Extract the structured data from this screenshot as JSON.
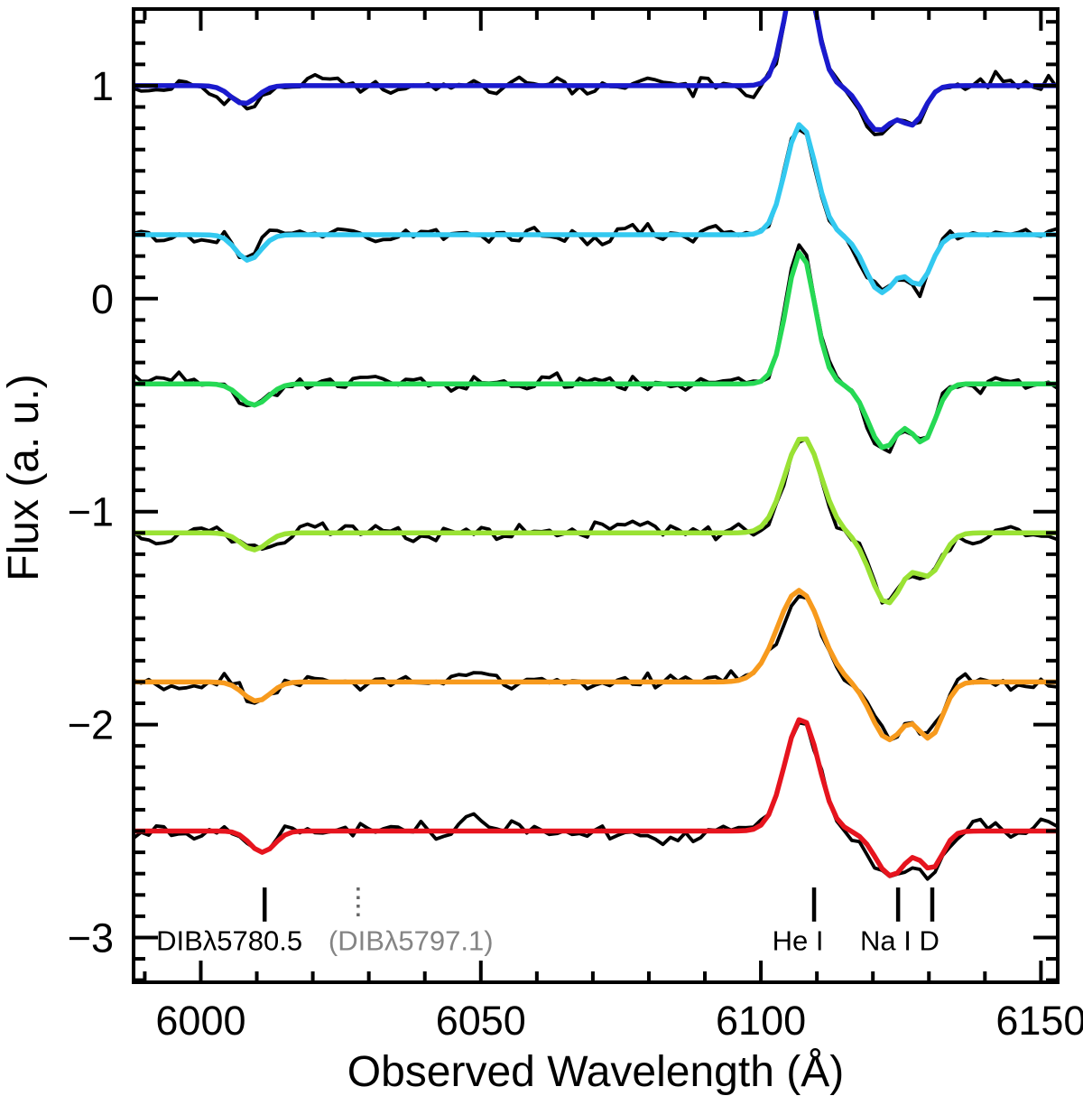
{
  "figure": {
    "xlabel": "Observed Wavelength (Å)",
    "ylabel": "Flux (a. u.)"
  },
  "chart_data": {
    "type": "line",
    "title": "",
    "xlabel": "Observed Wavelength (Å)",
    "ylabel": "Flux (a. u.)",
    "xlim": [
      5988,
      6153
    ],
    "ylim": [
      -3.21,
      1.36
    ],
    "x_major_ticks": [
      6000,
      6050,
      6100,
      6150
    ],
    "x_major_tick_labels": [
      "6000",
      "6050",
      "6100",
      "6150"
    ],
    "x_minor_step": 10,
    "y_major_ticks": [
      1,
      0,
      -1,
      -2,
      -3
    ],
    "y_major_tick_labels": [
      "1",
      "0",
      "−1",
      "−2",
      "−3"
    ],
    "y_minor_step": 0.1,
    "grid": false,
    "legend": "none",
    "data_line_color": "#000000",
    "sample_step": 1.35,
    "noise_sigma": 0.033,
    "series": [
      {
        "name": "spectrum-1",
        "model_color": "#1a1acd",
        "offset": 1.0,
        "seed": 41,
        "emission": {
          "center": 6107.1,
          "amp": 0.62,
          "sigma": 2.5
        },
        "absorptions": [
          {
            "center": 6007.7,
            "depth": 0.085,
            "sigma": 2.3
          },
          {
            "center": 6120.9,
            "depth": 0.21,
            "sigma": 2.7
          },
          {
            "center": 6127.2,
            "depth": 0.17,
            "sigma": 2.1
          }
        ]
      },
      {
        "name": "spectrum-2",
        "model_color": "#33c9f0",
        "offset": 0.3,
        "seed": 17,
        "emission": {
          "center": 6107.1,
          "amp": 0.52,
          "sigma": 2.7
        },
        "absorptions": [
          {
            "center": 6008.5,
            "depth": 0.12,
            "sigma": 2.2
          },
          {
            "center": 6121.5,
            "depth": 0.27,
            "sigma": 2.8
          },
          {
            "center": 6128.3,
            "depth": 0.22,
            "sigma": 2.2
          }
        ]
      },
      {
        "name": "spectrum-3",
        "model_color": "#26d954",
        "offset": -0.4,
        "seed": 23,
        "emission": {
          "center": 6107.1,
          "amp": 0.62,
          "sigma": 2.5
        },
        "absorptions": [
          {
            "center": 6009.5,
            "depth": 0.1,
            "sigma": 2.5
          },
          {
            "center": 6122.0,
            "depth": 0.3,
            "sigma": 2.8
          },
          {
            "center": 6129.0,
            "depth": 0.26,
            "sigma": 2.2
          }
        ]
      },
      {
        "name": "spectrum-4",
        "model_color": "#9ae234",
        "offset": -1.1,
        "seed": 57,
        "emission": {
          "center": 6107.5,
          "amp": 0.45,
          "sigma": 3.2
        },
        "absorptions": [
          {
            "center": 6009.5,
            "depth": 0.08,
            "sigma": 2.3
          },
          {
            "center": 6122.5,
            "depth": 0.33,
            "sigma": 2.9
          },
          {
            "center": 6130.0,
            "depth": 0.19,
            "sigma": 2.4
          }
        ]
      },
      {
        "name": "spectrum-5",
        "model_color": "#f79a1d",
        "offset": -1.8,
        "seed": 71,
        "emission": {
          "center": 6106.8,
          "amp": 0.43,
          "sigma": 3.8
        },
        "absorptions": [
          {
            "center": 6010.0,
            "depth": 0.09,
            "sigma": 2.4
          },
          {
            "center": 6122.8,
            "depth": 0.27,
            "sigma": 3.0
          },
          {
            "center": 6130.2,
            "depth": 0.25,
            "sigma": 2.3
          }
        ]
      },
      {
        "name": "spectrum-6",
        "model_color": "#e6141e",
        "offset": -2.5,
        "seed": 93,
        "emission": {
          "center": 6107.3,
          "amp": 0.53,
          "sigma": 3.0
        },
        "absorptions": [
          {
            "center": 6011.0,
            "depth": 0.1,
            "sigma": 2.2
          },
          {
            "center": 6123.3,
            "depth": 0.21,
            "sigma": 2.8
          },
          {
            "center": 6130.5,
            "depth": 0.17,
            "sigma": 2.0
          }
        ]
      }
    ],
    "annotations": {
      "marker_top": -2.765,
      "marker_bottom": -2.925,
      "label_baseline": -3.06,
      "markers": [
        {
          "wavelength": 6011.4,
          "style": "solid",
          "color": "#000000",
          "name": "dib-5780-marker"
        },
        {
          "wavelength": 6028.1,
          "style": "dotted",
          "color": "#666666",
          "name": "dib-5797-marker"
        },
        {
          "wavelength": 6109.5,
          "style": "solid",
          "color": "#000000",
          "name": "he-i-marker"
        },
        {
          "wavelength": 6124.5,
          "style": "solid",
          "color": "#000000",
          "name": "na-i-d1-marker"
        },
        {
          "wavelength": 6130.6,
          "style": "solid",
          "color": "#000000",
          "name": "na-i-d2-marker"
        }
      ],
      "labels": [
        {
          "text": "DIBλ5780.5",
          "wavelength": 6005.1,
          "color": "#000000",
          "name": "dib-5780-label"
        },
        {
          "text": "(DIBλ5797.1)",
          "wavelength": 6037.5,
          "color": "#848484",
          "name": "dib-5797-label"
        },
        {
          "text": "He I",
          "wavelength": 6106.6,
          "color": "#000000",
          "name": "he-i-label"
        },
        {
          "text": "Na I D",
          "wavelength": 6124.8,
          "color": "#000000",
          "name": "na-i-d-label"
        }
      ]
    }
  }
}
